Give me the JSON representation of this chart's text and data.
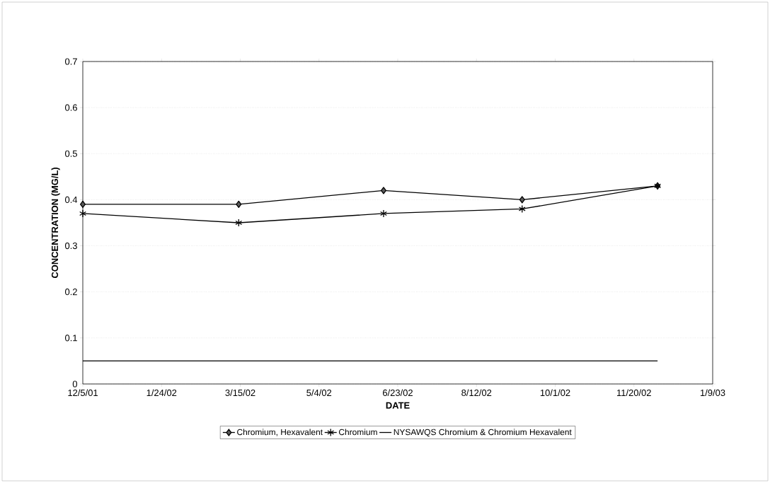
{
  "chart_data": {
    "type": "line",
    "xlabel": "DATE",
    "ylabel": "CONCENTRATION (MG/L)",
    "x": [
      "2001-12-05",
      "2002-03-14",
      "2002-06-14",
      "2002-09-10",
      "2002-12-05"
    ],
    "xlim": [
      "2001-12-05",
      "2003-01-09"
    ],
    "xticks": [
      {
        "value": "2001-12-05",
        "label": "12/5/01"
      },
      {
        "value": "2002-01-24",
        "label": "1/24/02"
      },
      {
        "value": "2002-03-15",
        "label": "3/15/02"
      },
      {
        "value": "2002-05-04",
        "label": "5/4/02"
      },
      {
        "value": "2002-06-23",
        "label": "6/23/02"
      },
      {
        "value": "2002-08-12",
        "label": "8/12/02"
      },
      {
        "value": "2002-10-01",
        "label": "10/1/02"
      },
      {
        "value": "2002-11-20",
        "label": "11/20/02"
      },
      {
        "value": "2003-01-09",
        "label": "1/9/03"
      }
    ],
    "ylim": [
      0,
      0.7
    ],
    "yticks": [
      0,
      0.1,
      0.2,
      0.3,
      0.4,
      0.5,
      0.6,
      0.7
    ],
    "grid": "y",
    "legend": "bottom",
    "line_style": "solid",
    "series": [
      {
        "name": "Chromium, Hexavalent",
        "color": "#000000",
        "marker": "diamond",
        "values": [
          0.39,
          0.39,
          0.42,
          0.4,
          0.43
        ]
      },
      {
        "name": "Chromium",
        "color": "#000000",
        "marker": "cross",
        "values": [
          0.37,
          0.35,
          0.37,
          0.38,
          0.43
        ]
      },
      {
        "name": "NYSAWQS Chromium & Chromium Hexavalent",
        "color": "#000000",
        "marker": "none",
        "x": [
          "2001-12-05",
          "2002-12-05"
        ],
        "values": [
          0.05,
          0.05
        ]
      }
    ]
  }
}
